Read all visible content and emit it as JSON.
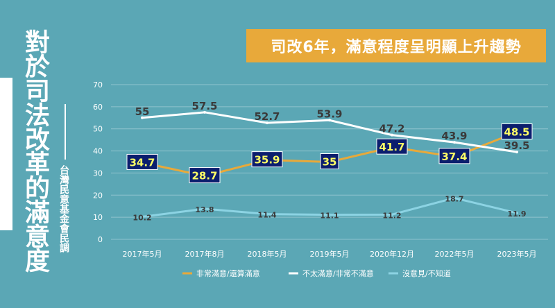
{
  "title": "對於司法改革的滿意度",
  "source": "台灣民意基金會民調",
  "banner": "司改6年，滿意程度呈明顯上升趨勢",
  "colors": {
    "background": "#5BA7B5",
    "satisfied": "#E8A93A",
    "unsatisfied": "#FFFFFF",
    "no_opinion": "#8CD3E3",
    "label_box": "#0B1E6E",
    "label_text_box": "#FFFF66",
    "label_text": "#3A3A3A"
  },
  "chart_data": {
    "type": "line",
    "title": "",
    "xlabel": "",
    "ylabel": "",
    "ylim": [
      0,
      70
    ],
    "yticks": [
      0,
      10,
      20,
      30,
      40,
      50,
      60,
      70
    ],
    "grid": true,
    "legend_position": "bottom",
    "categories": [
      "2017年5月",
      "2017年8月",
      "2018年5月",
      "2019年5月",
      "2020年12月",
      "2022年5月",
      "2023年5月"
    ],
    "series": [
      {
        "name": "非常滿意/還算滿意",
        "values": [
          34.7,
          28.7,
          35.9,
          35,
          41.7,
          37.4,
          48.5
        ],
        "labels": [
          "34.7",
          "28.7",
          "35.9",
          "35",
          "41.7",
          "37.4",
          "48.5"
        ]
      },
      {
        "name": "不太滿意/非常不滿意",
        "values": [
          55,
          57.5,
          52.7,
          53.9,
          47.2,
          43.9,
          39.5
        ],
        "labels": [
          "55",
          "57.5",
          "52.7",
          "53.9",
          "47.2",
          "43.9",
          "39.5"
        ]
      },
      {
        "name": "沒意見/不知道",
        "values": [
          10.2,
          13.8,
          11.4,
          11.1,
          11.2,
          18.7,
          11.9
        ],
        "labels": [
          "10.2",
          "13.8",
          "11.4",
          "11.1",
          "11.2",
          "18.7",
          "11.9"
        ]
      }
    ]
  }
}
